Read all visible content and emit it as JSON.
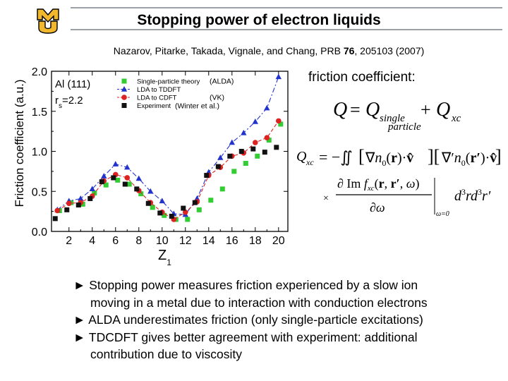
{
  "slide": {
    "title": "Stopping power of electron liquids",
    "citation_pre": "Nazarov, Pitarke, Takada, Vignale, and Chang, PRB ",
    "citation_vol": "76",
    "citation_post": ", 205103 (2007)",
    "friction_label": "friction coefficient:"
  },
  "logo": {
    "text": "MU",
    "colors": {
      "gold": "#f1b82d",
      "black": "#000000"
    }
  },
  "bullets": [
    {
      "marker": "►",
      "line1": "Stopping power measures friction experienced by a slow ion",
      "line2": "moving in a metal due to interaction with conduction electrons"
    },
    {
      "marker": "►",
      "line1": "ALDA underestimates friction (only single-particle excitations)"
    },
    {
      "marker": "►",
      "line1": "TDCDFT gives better agreement with experiment: additional",
      "line2": "contribution due to viscosity"
    }
  ],
  "chart_data": {
    "type": "line",
    "ylabel": "Friction coefficient (a.u.)",
    "xlabel_main": "Z",
    "xlabel_sub": "1",
    "panel_text_1": "Al (111)",
    "panel_text_2_main": "r",
    "panel_text_2_sub": "s",
    "panel_text_2_rest": "=2.2",
    "xlim": [
      0.5,
      20.8
    ],
    "ylim": [
      0.0,
      2.0
    ],
    "xticks": [
      2,
      4,
      6,
      8,
      10,
      12,
      14,
      16,
      18,
      20
    ],
    "yticks": [
      0.0,
      0.5,
      1.0,
      1.5,
      2.0
    ],
    "ytick_labels": [
      "0.0",
      "0.5",
      "1.0",
      "1.5",
      "2.0"
    ],
    "legend_position": "top-left",
    "series": [
      {
        "name": "Single-particle theory",
        "annotation": "(ALDA)",
        "color": "#33cc33",
        "marker": "square",
        "line": "none",
        "x": [
          1,
          2,
          3,
          4,
          5,
          6,
          7,
          8,
          9,
          10,
          11,
          12,
          13,
          14,
          15,
          16,
          17,
          18,
          19,
          20
        ],
        "y": [
          0.26,
          0.36,
          0.34,
          0.48,
          0.58,
          0.64,
          0.59,
          0.47,
          0.3,
          0.2,
          0.15,
          0.15,
          0.27,
          0.39,
          0.53,
          0.75,
          0.85,
          0.94,
          1.14,
          1.34
        ]
      },
      {
        "name": "LDA to TDDFT",
        "annotation": "",
        "color": "#2233cc",
        "marker": "triangle",
        "line": "dashdot",
        "x": [
          1,
          2,
          3,
          4,
          5,
          6,
          7,
          8,
          9,
          10,
          11,
          12,
          13,
          14,
          15,
          16,
          17,
          18,
          19,
          20
        ],
        "y": [
          0.27,
          0.38,
          0.41,
          0.53,
          0.69,
          0.84,
          0.8,
          0.66,
          0.5,
          0.38,
          0.22,
          0.21,
          0.41,
          0.74,
          0.92,
          1.11,
          1.23,
          1.37,
          1.54,
          1.93
        ]
      },
      {
        "name": "LDA to CDFT",
        "annotation": "(VK)",
        "color": "#dd2222",
        "marker": "circle",
        "line": "dash",
        "x": [
          1,
          2,
          3,
          4,
          5,
          6,
          7,
          8,
          9,
          10,
          11,
          12,
          13,
          14,
          15,
          16,
          17,
          18,
          19,
          20
        ],
        "y": [
          0.26,
          0.35,
          0.36,
          0.44,
          0.63,
          0.71,
          0.67,
          0.51,
          0.36,
          0.24,
          0.15,
          0.24,
          0.37,
          0.7,
          0.8,
          0.94,
          0.98,
          1.11,
          1.17,
          1.38
        ]
      },
      {
        "name": "Experiment",
        "annotation": "(Winter et al.)",
        "color": "#111111",
        "marker": "square",
        "line": "none",
        "x": [
          1,
          2,
          3,
          4,
          5,
          6,
          7,
          8,
          9,
          10,
          11,
          12,
          13,
          14,
          15,
          16,
          17,
          18,
          19,
          20
        ],
        "y": [
          0.16,
          0.27,
          0.33,
          0.41,
          0.62,
          0.67,
          0.59,
          0.53,
          0.35,
          0.23,
          0.19,
          0.29,
          0.36,
          0.7,
          0.81,
          0.94,
          1.0,
          1.03,
          0.99,
          1.05
        ]
      }
    ]
  }
}
